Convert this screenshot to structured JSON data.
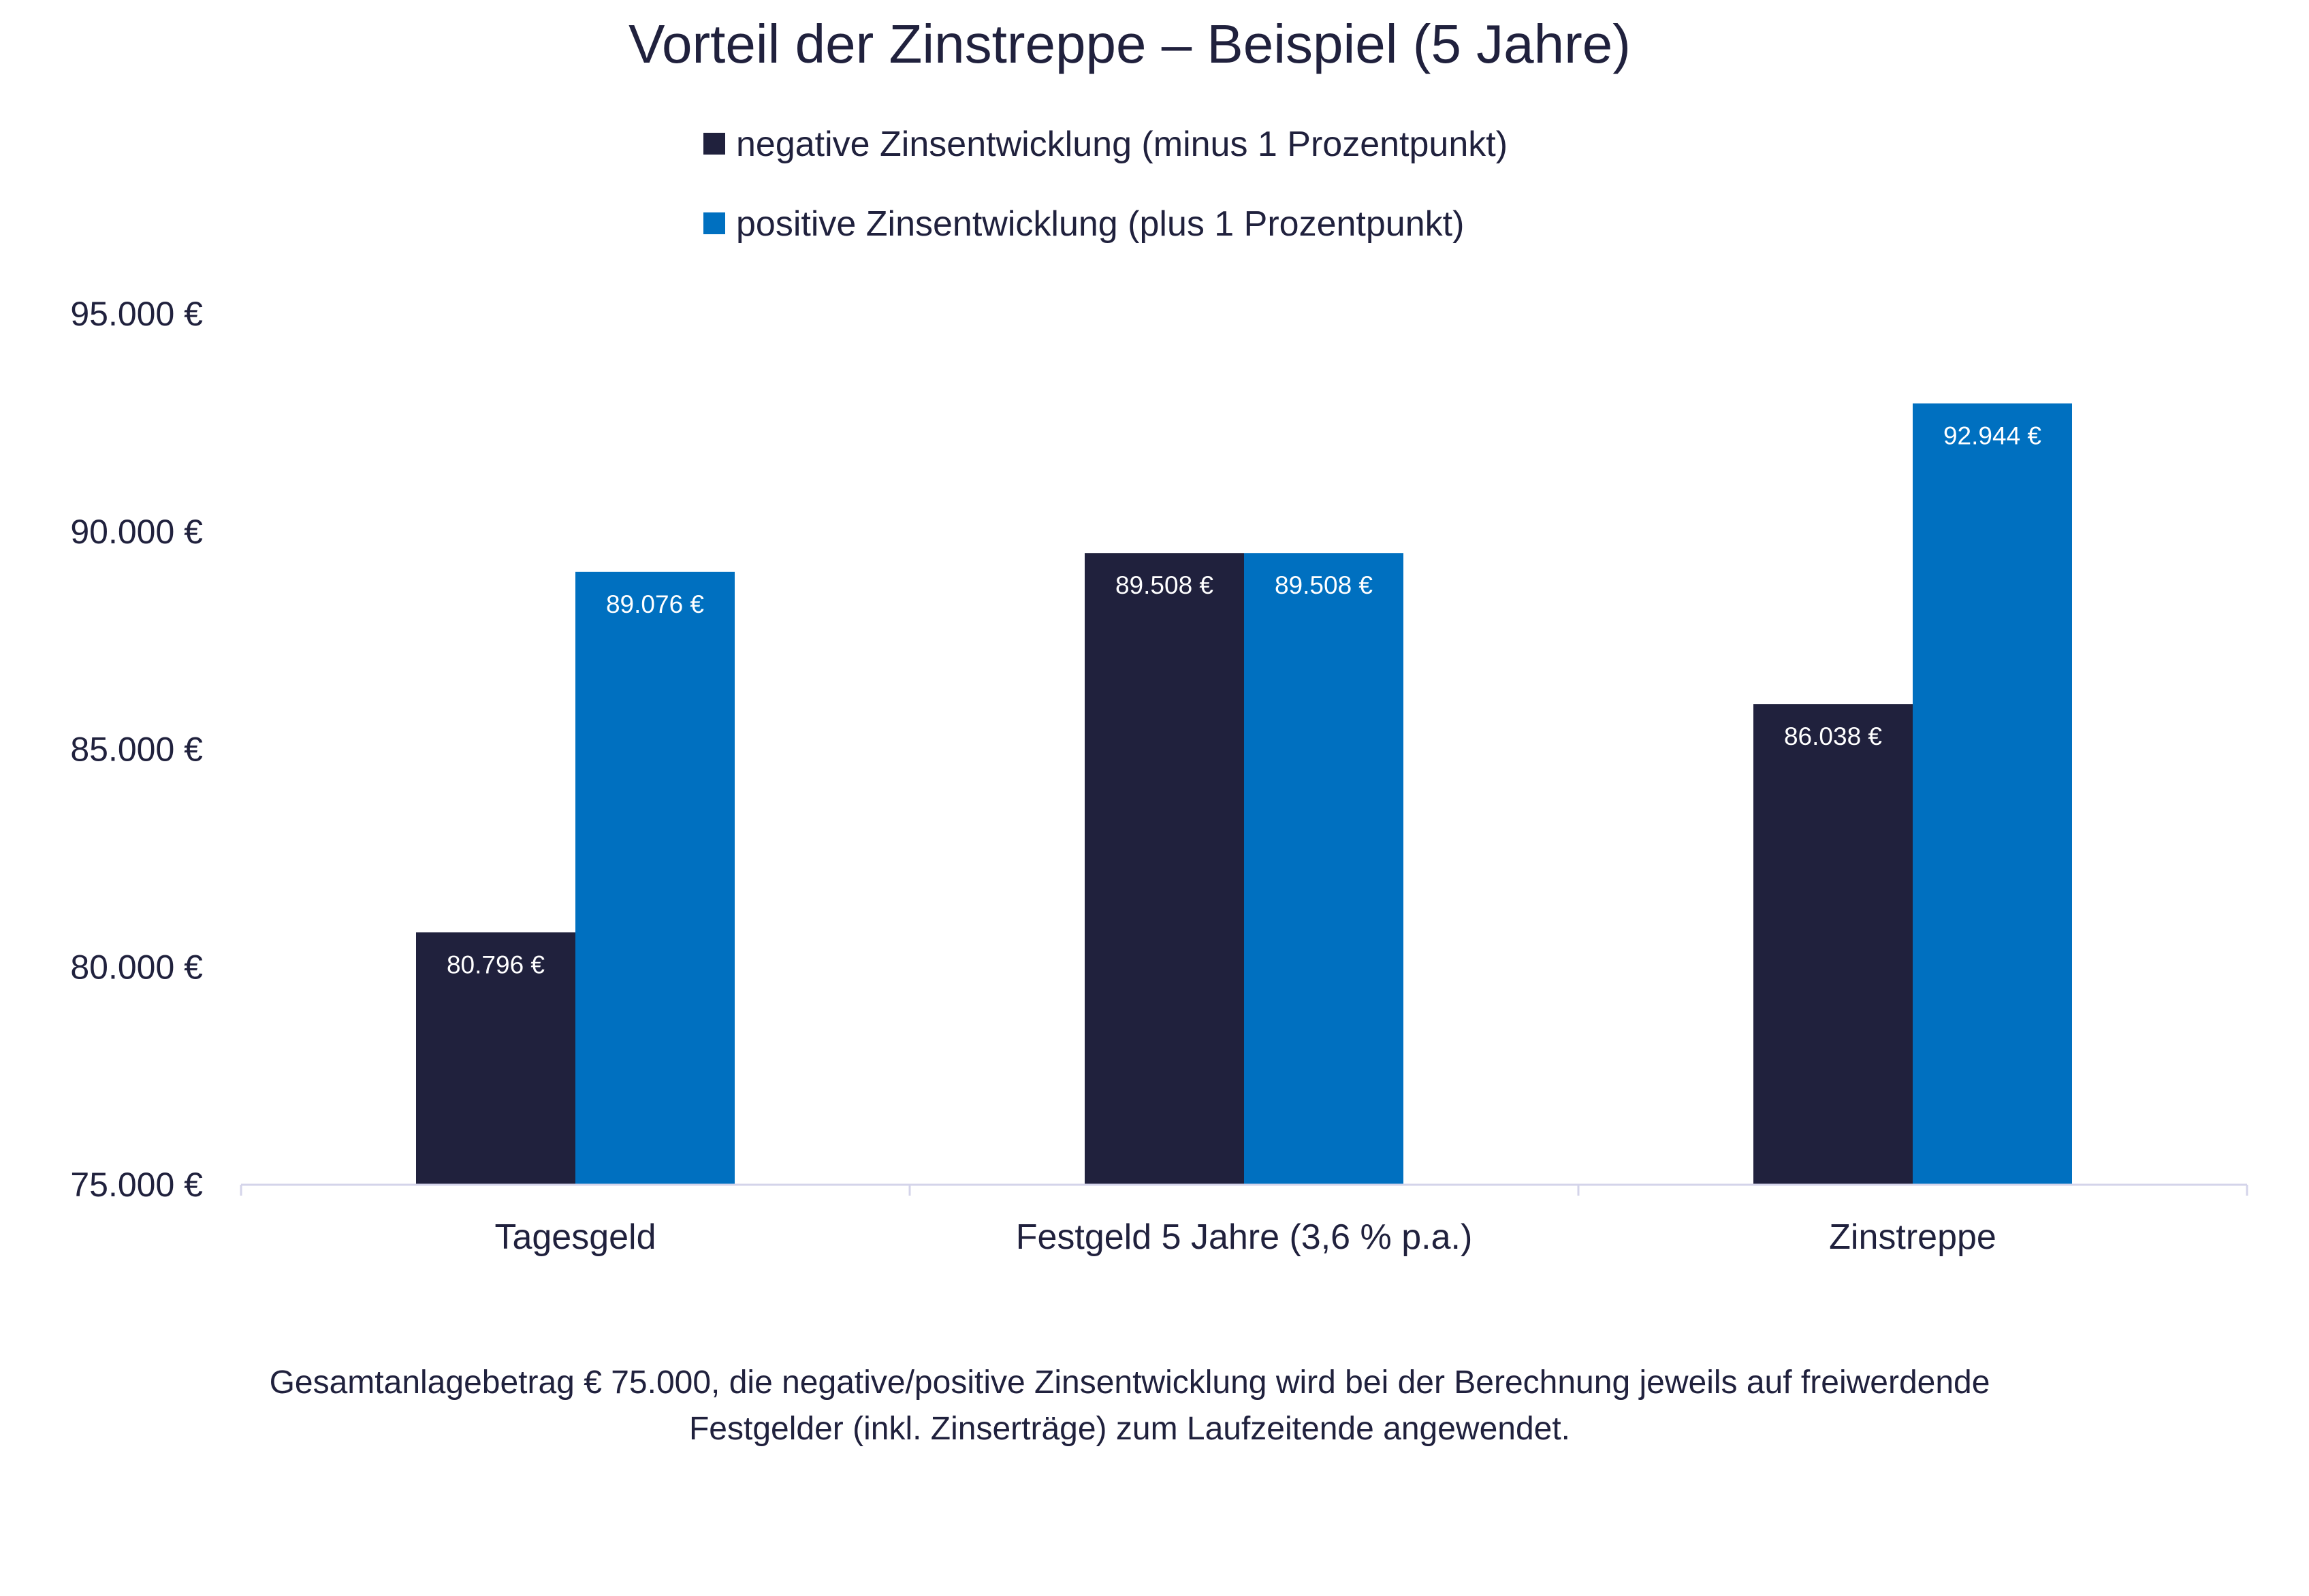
{
  "chart_data": {
    "type": "bar",
    "title": "Vorteil der Zinstreppe – Beispiel (5 Jahre)",
    "xlabel": "",
    "ylabel": "",
    "ylim": [
      75000,
      95000
    ],
    "yticks": [
      75000,
      80000,
      85000,
      90000,
      95000
    ],
    "ytick_labels": [
      "75.000 €",
      "80.000 €",
      "85.000 €",
      "90.000 €",
      "95.000 €"
    ],
    "grid": false,
    "legend_position": "top-center",
    "categories": [
      "Tagesgeld",
      "Festgeld 5 Jahre (3,6 % p.a.)",
      "Zinstreppe"
    ],
    "series": [
      {
        "name": "negative Zinsentwicklung (minus 1 Prozentpunkt)",
        "color": "#20213d",
        "values": [
          80796,
          89508,
          86038
        ],
        "labels": [
          "80.796 €",
          "89.508 €",
          "86.038 €"
        ]
      },
      {
        "name": "positive Zinsentwicklung (plus 1 Prozentpunkt)",
        "color": "#0070c0",
        "values": [
          89076,
          89508,
          92944
        ],
        "labels": [
          "89.076 €",
          "89.508 €",
          "92.944 €"
        ]
      }
    ],
    "footnote": [
      "Gesamtanlagebetrag € 75.000, die negative/positive Zinsentwicklung wird bei der Berechnung jeweils auf freiwerdende",
      "Festgelder (inkl. Zinserträge) zum Laufzeitende angewendet."
    ]
  }
}
